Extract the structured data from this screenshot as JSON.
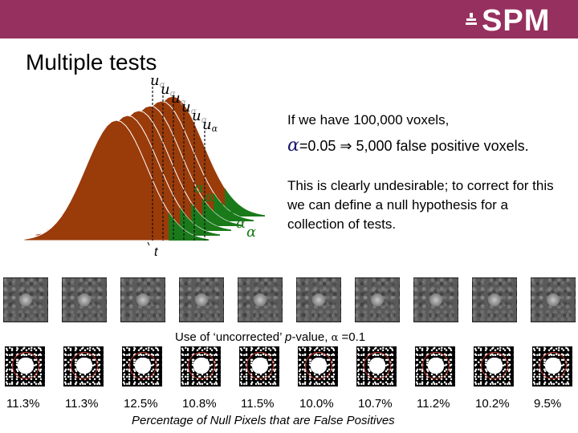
{
  "header": {
    "logo_text": "SPM",
    "banner_color": "#96305f"
  },
  "title": "Multiple tests",
  "figure": {
    "u_label": "u",
    "alpha_subscript": "α",
    "alpha_label": "α",
    "t_label": "t",
    "curve_color": "#9a3b0a",
    "tail_color": "#1a7a1a",
    "alpha_color": "#1a1a70"
  },
  "text": {
    "line1": "If we have 100,000 voxels,",
    "alpha": "α",
    "line2": "=0.05 ⇒ 5,000 false positive voxels.",
    "line3": "This is clearly undesirable; to correct for this we can define a null hypothesis for a collection of tests."
  },
  "use_label": {
    "prefix": "Use of ‘uncorrected’ ",
    "p": "p",
    "middle": "-value, ",
    "alpha": "α",
    "suffix": " =0.1"
  },
  "percentages": [
    "11.3%",
    "11.3%",
    "12.5%",
    "10.8%",
    "11.5%",
    "10.0%",
    "10.7%",
    "11.2%",
    "10.2%",
    "9.5%"
  ],
  "footer": "Percentage of Null Pixels that are False Positives"
}
